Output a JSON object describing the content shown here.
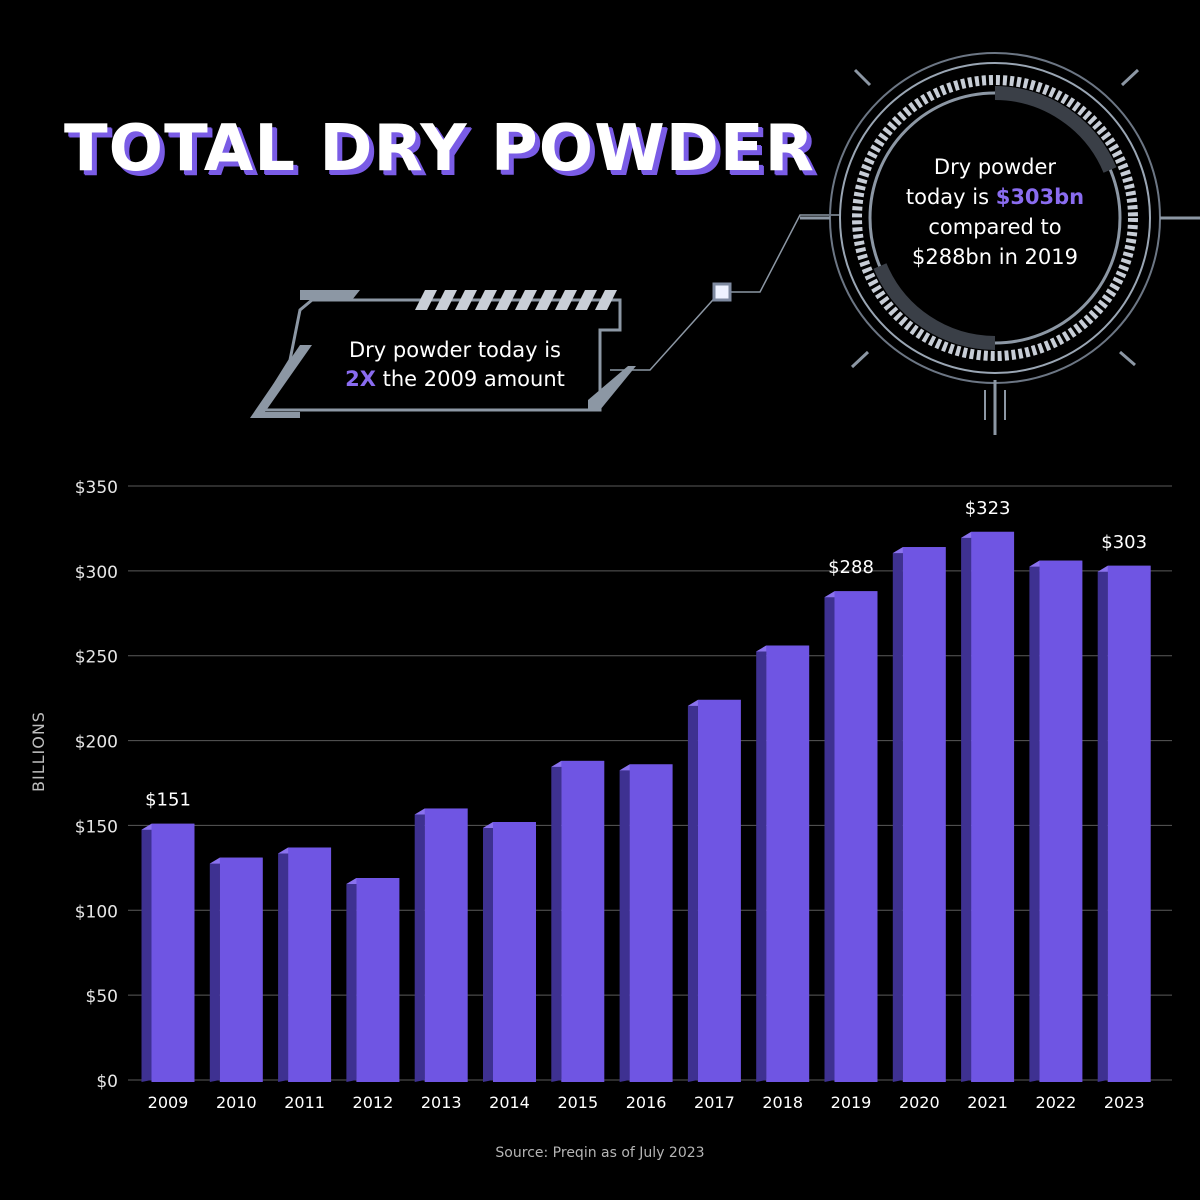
{
  "title": "TOTAL DRY POWDER",
  "callout_left": {
    "line1": "Dry powder today is",
    "highlight": "2X",
    "rest": " the 2009 amount"
  },
  "callout_ring": {
    "line1": "Dry powder",
    "line2_pre": "today is ",
    "highlight": "$303bn",
    "line3": "compared to",
    "line4": "$288bn in 2019"
  },
  "source": "Source: Preqin as of July 2023",
  "colors": {
    "bar_front": "#6f55e3",
    "bar_side": "#3e3191",
    "bar_top": "#8a72ee",
    "accent": "#8a6cf0",
    "grid": "#5a5a5a"
  },
  "chart_data": {
    "type": "bar",
    "ylabel": "BILLIONS",
    "categories": [
      "2009",
      "2010",
      "2011",
      "2012",
      "2013",
      "2014",
      "2015",
      "2016",
      "2017",
      "2018",
      "2019",
      "2020",
      "2021",
      "2022",
      "2023"
    ],
    "values": [
      151,
      131,
      137,
      119,
      160,
      152,
      188,
      186,
      224,
      256,
      288,
      314,
      323,
      306,
      303
    ],
    "ylim": [
      0,
      350
    ],
    "yticks": [
      "$0",
      "$50",
      "$100",
      "$150",
      "$200",
      "$250",
      "$300",
      "$350"
    ],
    "data_labels": [
      {
        "category": "2009",
        "text": "$151"
      },
      {
        "category": "2019",
        "text": "$288"
      },
      {
        "category": "2021",
        "text": "$323"
      },
      {
        "category": "2023",
        "text": "$303"
      }
    ],
    "grid": true
  }
}
